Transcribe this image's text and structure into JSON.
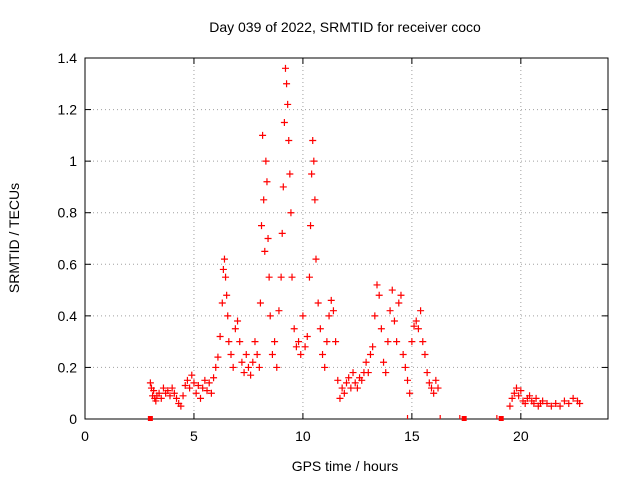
{
  "chart_data": {
    "type": "scatter",
    "title": "Day 039 of 2022, SRMTID for receiver coco",
    "xlabel": "GPS time / hours",
    "ylabel": "SRMTID / TECUs",
    "xlim": [
      0,
      24
    ],
    "ylim": [
      0,
      1.4
    ],
    "xticks": [
      0,
      5,
      10,
      15,
      20
    ],
    "yticks": [
      0,
      0.2,
      0.4,
      0.6,
      0.8,
      1,
      1.2,
      1.4
    ],
    "ytick_labels": [
      "0",
      "0.2",
      "0.4",
      "0.6",
      "0.8",
      "1",
      "1.2",
      "1.4"
    ],
    "grid": true,
    "marker": "+",
    "point_color": "#ff0000",
    "zero_marker_color": "#ff0000",
    "zero_markers_x": [
      3.0,
      17.4,
      19.1
    ],
    "tiny_markers_x": [
      14.8,
      16.3,
      17.2,
      18.9
    ],
    "series": [
      {
        "name": "SRMTID",
        "points": [
          [
            3.0,
            0.14
          ],
          [
            3.05,
            0.12
          ],
          [
            3.1,
            0.09
          ],
          [
            3.15,
            0.11
          ],
          [
            3.2,
            0.08
          ],
          [
            3.25,
            0.07
          ],
          [
            3.3,
            0.09
          ],
          [
            3.4,
            0.1
          ],
          [
            3.5,
            0.08
          ],
          [
            3.6,
            0.12
          ],
          [
            3.7,
            0.1
          ],
          [
            3.8,
            0.11
          ],
          [
            3.9,
            0.09
          ],
          [
            4.0,
            0.12
          ],
          [
            4.1,
            0.1
          ],
          [
            4.2,
            0.08
          ],
          [
            4.3,
            0.06
          ],
          [
            4.4,
            0.05
          ],
          [
            4.5,
            0.09
          ],
          [
            4.6,
            0.13
          ],
          [
            4.7,
            0.15
          ],
          [
            4.8,
            0.12
          ],
          [
            4.9,
            0.17
          ],
          [
            5.0,
            0.14
          ],
          [
            5.1,
            0.1
          ],
          [
            5.2,
            0.13
          ],
          [
            5.3,
            0.08
          ],
          [
            5.4,
            0.12
          ],
          [
            5.5,
            0.15
          ],
          [
            5.6,
            0.11
          ],
          [
            5.7,
            0.14
          ],
          [
            5.8,
            0.1
          ],
          [
            5.9,
            0.16
          ],
          [
            6.0,
            0.2
          ],
          [
            6.1,
            0.24
          ],
          [
            6.2,
            0.32
          ],
          [
            6.3,
            0.45
          ],
          [
            6.35,
            0.58
          ],
          [
            6.4,
            0.62
          ],
          [
            6.45,
            0.55
          ],
          [
            6.5,
            0.48
          ],
          [
            6.55,
            0.4
          ],
          [
            6.6,
            0.3
          ],
          [
            6.7,
            0.25
          ],
          [
            6.8,
            0.2
          ],
          [
            6.9,
            0.35
          ],
          [
            7.0,
            0.38
          ],
          [
            7.1,
            0.3
          ],
          [
            7.2,
            0.22
          ],
          [
            7.3,
            0.18
          ],
          [
            7.4,
            0.25
          ],
          [
            7.5,
            0.2
          ],
          [
            7.6,
            0.17
          ],
          [
            7.7,
            0.22
          ],
          [
            7.8,
            0.3
          ],
          [
            7.9,
            0.25
          ],
          [
            8.0,
            0.2
          ],
          [
            8.05,
            0.45
          ],
          [
            8.1,
            0.75
          ],
          [
            8.15,
            1.1
          ],
          [
            8.2,
            0.85
          ],
          [
            8.25,
            0.65
          ],
          [
            8.3,
            1.0
          ],
          [
            8.35,
            0.92
          ],
          [
            8.4,
            0.7
          ],
          [
            8.45,
            0.55
          ],
          [
            8.5,
            0.4
          ],
          [
            8.6,
            0.25
          ],
          [
            8.7,
            0.3
          ],
          [
            8.8,
            0.2
          ],
          [
            8.9,
            0.42
          ],
          [
            9.0,
            0.55
          ],
          [
            9.05,
            0.72
          ],
          [
            9.1,
            0.9
          ],
          [
            9.15,
            1.15
          ],
          [
            9.2,
            1.36
          ],
          [
            9.25,
            1.3
          ],
          [
            9.3,
            1.22
          ],
          [
            9.35,
            1.08
          ],
          [
            9.4,
            0.95
          ],
          [
            9.45,
            0.8
          ],
          [
            9.5,
            0.55
          ],
          [
            9.6,
            0.35
          ],
          [
            9.7,
            0.28
          ],
          [
            9.8,
            0.3
          ],
          [
            9.9,
            0.25
          ],
          [
            10.0,
            0.4
          ],
          [
            10.1,
            0.28
          ],
          [
            10.2,
            0.32
          ],
          [
            10.3,
            0.55
          ],
          [
            10.35,
            0.75
          ],
          [
            10.4,
            0.95
          ],
          [
            10.45,
            1.08
          ],
          [
            10.5,
            1.0
          ],
          [
            10.55,
            0.85
          ],
          [
            10.6,
            0.62
          ],
          [
            10.7,
            0.45
          ],
          [
            10.8,
            0.35
          ],
          [
            10.9,
            0.25
          ],
          [
            11.0,
            0.2
          ],
          [
            11.1,
            0.3
          ],
          [
            11.2,
            0.4
          ],
          [
            11.3,
            0.46
          ],
          [
            11.4,
            0.42
          ],
          [
            11.5,
            0.3
          ],
          [
            11.6,
            0.15
          ],
          [
            11.7,
            0.08
          ],
          [
            11.8,
            0.12
          ],
          [
            11.9,
            0.1
          ],
          [
            12.0,
            0.14
          ],
          [
            12.1,
            0.16
          ],
          [
            12.2,
            0.12
          ],
          [
            12.3,
            0.18
          ],
          [
            12.4,
            0.14
          ],
          [
            12.5,
            0.12
          ],
          [
            12.6,
            0.16
          ],
          [
            12.7,
            0.15
          ],
          [
            12.8,
            0.18
          ],
          [
            12.9,
            0.22
          ],
          [
            13.0,
            0.18
          ],
          [
            13.1,
            0.25
          ],
          [
            13.2,
            0.28
          ],
          [
            13.3,
            0.4
          ],
          [
            13.4,
            0.52
          ],
          [
            13.5,
            0.48
          ],
          [
            13.6,
            0.35
          ],
          [
            13.7,
            0.22
          ],
          [
            13.8,
            0.18
          ],
          [
            13.9,
            0.3
          ],
          [
            14.0,
            0.42
          ],
          [
            14.1,
            0.5
          ],
          [
            14.2,
            0.38
          ],
          [
            14.3,
            0.3
          ],
          [
            14.4,
            0.45
          ],
          [
            14.5,
            0.48
          ],
          [
            14.6,
            0.25
          ],
          [
            14.7,
            0.2
          ],
          [
            14.8,
            0.15
          ],
          [
            14.9,
            0.1
          ],
          [
            15.0,
            0.3
          ],
          [
            15.1,
            0.36
          ],
          [
            15.2,
            0.38
          ],
          [
            15.3,
            0.35
          ],
          [
            15.4,
            0.42
          ],
          [
            15.5,
            0.3
          ],
          [
            15.6,
            0.25
          ],
          [
            15.7,
            0.18
          ],
          [
            15.8,
            0.14
          ],
          [
            15.9,
            0.12
          ],
          [
            16.0,
            0.1
          ],
          [
            16.1,
            0.15
          ],
          [
            16.2,
            0.12
          ],
          [
            19.5,
            0.05
          ],
          [
            19.6,
            0.08
          ],
          [
            19.7,
            0.1
          ],
          [
            19.8,
            0.12
          ],
          [
            19.9,
            0.09
          ],
          [
            20.0,
            0.11
          ],
          [
            20.1,
            0.07
          ],
          [
            20.2,
            0.06
          ],
          [
            20.3,
            0.08
          ],
          [
            20.4,
            0.09
          ],
          [
            20.5,
            0.07
          ],
          [
            20.6,
            0.06
          ],
          [
            20.7,
            0.08
          ],
          [
            20.8,
            0.05
          ],
          [
            20.9,
            0.06
          ],
          [
            21.0,
            0.07
          ],
          [
            21.2,
            0.06
          ],
          [
            21.4,
            0.05
          ],
          [
            21.6,
            0.06
          ],
          [
            21.8,
            0.05
          ],
          [
            22.0,
            0.07
          ],
          [
            22.2,
            0.06
          ],
          [
            22.4,
            0.08
          ],
          [
            22.6,
            0.07
          ],
          [
            22.7,
            0.06
          ]
        ]
      }
    ]
  }
}
